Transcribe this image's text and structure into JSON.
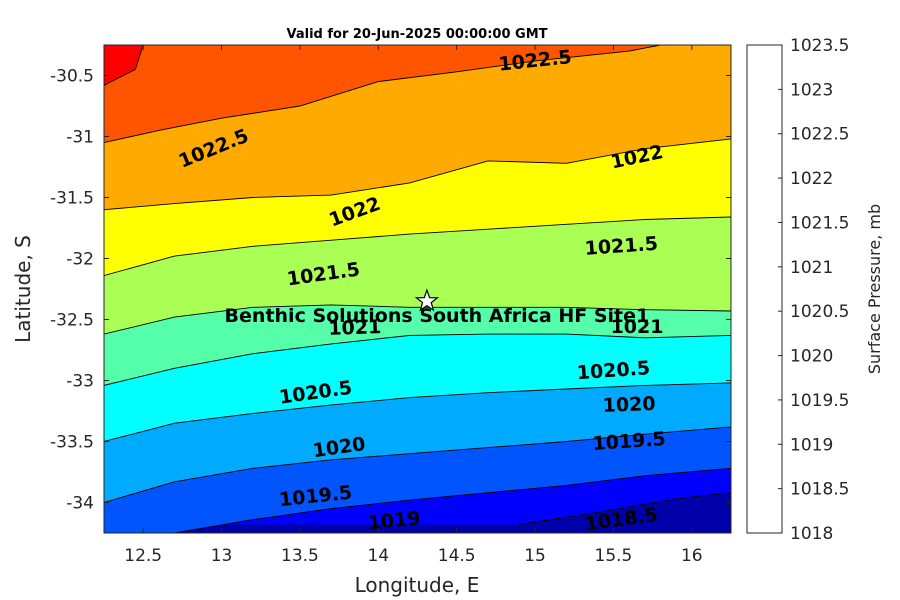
{
  "chart_data": {
    "type": "contour",
    "title": "Valid for 20-Jun-2025 00:00:00 GMT",
    "xlabel": "Longitude, E",
    "ylabel": "Latitude, S",
    "xlim": [
      12.25,
      16.25
    ],
    "ylim": [
      -34.25,
      -30.25
    ],
    "x_ticks": [
      12.5,
      13,
      13.5,
      14,
      14.5,
      15,
      15.5,
      16
    ],
    "y_ticks": [
      -30.5,
      -31,
      -31.5,
      -32,
      -32.5,
      -33,
      -33.5,
      -34
    ],
    "x_tick_labels": [
      "12.5",
      "13",
      "13.5",
      "14",
      "14.5",
      "15",
      "15.5",
      "16"
    ],
    "y_tick_labels": [
      "-30.5",
      "-31",
      "-31.5",
      "-32",
      "-32.5",
      "-33",
      "-33.5",
      "-34"
    ],
    "colorbar": {
      "title": "Surface Pressure, mb",
      "levels": [
        1018,
        1018.5,
        1019,
        1019.5,
        1020,
        1020.5,
        1021,
        1021.5,
        1022,
        1022.5,
        1023,
        1023.5
      ],
      "labels": [
        "1018",
        "1018.5",
        "1019",
        "1019.5",
        "1020",
        "1020.5",
        "1021",
        "1021.5",
        "1022",
        "1022.5",
        "1023",
        "1023.5"
      ],
      "colors": [
        "#0000aa",
        "#0000ff",
        "#0055ff",
        "#00aaff",
        "#00ffff",
        "#55ffaa",
        "#aaff55",
        "#ffff00",
        "#ffaa00",
        "#ff5500",
        "#ff0000"
      ]
    },
    "contours": [
      {
        "level": 1018.5,
        "points": [
          [
            14.9,
            -34.18
          ],
          [
            15.4,
            -34.08
          ],
          [
            15.9,
            -33.97
          ],
          [
            16.25,
            -33.92
          ]
        ]
      },
      {
        "level": 1019,
        "points": [
          [
            12.7,
            -34.25
          ],
          [
            13.2,
            -34.14
          ],
          [
            13.7,
            -34.05
          ],
          [
            14.2,
            -33.98
          ],
          [
            14.7,
            -33.92
          ],
          [
            15.2,
            -33.86
          ],
          [
            15.7,
            -33.78
          ],
          [
            16.25,
            -33.72
          ]
        ]
      },
      {
        "level": 1019.5,
        "points": [
          [
            12.25,
            -34.0
          ],
          [
            12.7,
            -33.83
          ],
          [
            13.2,
            -33.72
          ],
          [
            13.7,
            -33.65
          ],
          [
            14.2,
            -33.6
          ],
          [
            14.7,
            -33.55
          ],
          [
            15.2,
            -33.5
          ],
          [
            15.7,
            -33.44
          ],
          [
            16.25,
            -33.38
          ]
        ]
      },
      {
        "level": 1020,
        "points": [
          [
            12.25,
            -33.5
          ],
          [
            12.7,
            -33.35
          ],
          [
            13.2,
            -33.27
          ],
          [
            13.7,
            -33.2
          ],
          [
            14.2,
            -33.14
          ],
          [
            14.7,
            -33.1
          ],
          [
            15.2,
            -33.07
          ],
          [
            15.7,
            -33.04
          ],
          [
            16.25,
            -33.02
          ]
        ]
      },
      {
        "level": 1020.5,
        "points": [
          [
            12.25,
            -33.04
          ],
          [
            12.7,
            -32.9
          ],
          [
            13.2,
            -32.78
          ],
          [
            13.7,
            -32.7
          ],
          [
            14.2,
            -32.63
          ],
          [
            14.7,
            -32.62
          ],
          [
            15.2,
            -32.62
          ],
          [
            15.7,
            -32.65
          ],
          [
            16.25,
            -32.63
          ]
        ]
      },
      {
        "level": 1021,
        "points": [
          [
            12.25,
            -32.62
          ],
          [
            12.7,
            -32.48
          ],
          [
            13.2,
            -32.4
          ],
          [
            13.7,
            -32.38
          ],
          [
            14.2,
            -32.4
          ],
          [
            14.7,
            -32.4
          ],
          [
            15.2,
            -32.4
          ],
          [
            15.7,
            -32.42
          ],
          [
            16.25,
            -32.43
          ]
        ]
      },
      {
        "level": 1021.5,
        "points": [
          [
            12.25,
            -32.14
          ],
          [
            12.7,
            -31.98
          ],
          [
            13.2,
            -31.9
          ],
          [
            13.7,
            -31.85
          ],
          [
            14.2,
            -31.8
          ],
          [
            14.7,
            -31.76
          ],
          [
            15.2,
            -31.72
          ],
          [
            15.7,
            -31.68
          ],
          [
            16.25,
            -31.66
          ]
        ]
      },
      {
        "level": 1022,
        "points": [
          [
            12.25,
            -31.6
          ],
          [
            12.7,
            -31.55
          ],
          [
            13.2,
            -31.5
          ],
          [
            13.7,
            -31.48
          ],
          [
            14.2,
            -31.38
          ],
          [
            14.7,
            -31.2
          ],
          [
            15.2,
            -31.22
          ],
          [
            15.7,
            -31.1
          ],
          [
            16.25,
            -31.02
          ]
        ]
      },
      {
        "level": 1022.5,
        "points": [
          [
            12.25,
            -31.05
          ],
          [
            12.6,
            -30.95
          ],
          [
            13.0,
            -30.85
          ],
          [
            13.5,
            -30.75
          ],
          [
            14.0,
            -30.55
          ],
          [
            14.5,
            -30.47
          ],
          [
            15.0,
            -30.38
          ],
          [
            15.6,
            -30.3
          ],
          [
            15.8,
            -30.25
          ]
        ]
      },
      {
        "level": 1023,
        "points": [
          [
            12.25,
            -30.58
          ],
          [
            12.45,
            -30.45
          ],
          [
            12.5,
            -30.25
          ]
        ]
      }
    ],
    "contour_labels": [
      {
        "text": "1022.5",
        "x": 15.0,
        "y": -30.38,
        "angle": -6
      },
      {
        "text": "1022.5",
        "x": 12.95,
        "y": -31.1,
        "angle": -22
      },
      {
        "text": "1022",
        "x": 15.65,
        "y": -31.17,
        "angle": -12
      },
      {
        "text": "1022",
        "x": 13.85,
        "y": -31.62,
        "angle": -20
      },
      {
        "text": "1021.5",
        "x": 15.55,
        "y": -31.9,
        "angle": -4
      },
      {
        "text": "1021.5",
        "x": 13.65,
        "y": -32.13,
        "angle": -8
      },
      {
        "text": "1021",
        "x": 13.85,
        "y": -32.57,
        "angle": -2
      },
      {
        "text": "1021",
        "x": 15.65,
        "y": -32.56,
        "angle": 0
      },
      {
        "text": "1020.5",
        "x": 15.5,
        "y": -32.92,
        "angle": -4
      },
      {
        "text": "1020.5",
        "x": 13.6,
        "y": -33.1,
        "angle": -8
      },
      {
        "text": "1020",
        "x": 15.6,
        "y": -33.2,
        "angle": -2
      },
      {
        "text": "1020",
        "x": 13.75,
        "y": -33.55,
        "angle": -8
      },
      {
        "text": "1019.5",
        "x": 15.6,
        "y": -33.5,
        "angle": -4
      },
      {
        "text": "1019.5",
        "x": 13.6,
        "y": -33.95,
        "angle": -6
      },
      {
        "text": "1019",
        "x": 14.1,
        "y": -34.15,
        "angle": -6
      },
      {
        "text": "1018.5",
        "x": 15.55,
        "y": -34.14,
        "angle": -8
      }
    ],
    "site": {
      "name": "Benthic Solutions South Africa HF Site1",
      "lon": 14.31,
      "lat": -32.35,
      "marker": "star"
    }
  }
}
